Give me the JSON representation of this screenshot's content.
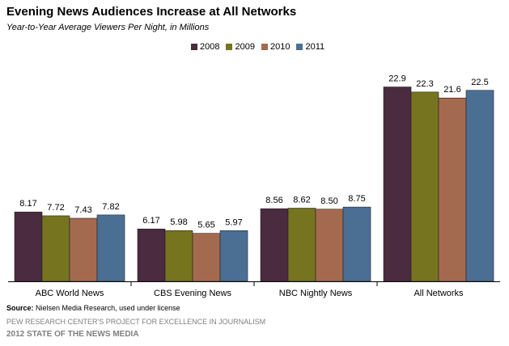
{
  "chart_data": {
    "type": "bar",
    "title": "Evening News Audiences Increase at All Networks",
    "subtitle": "Year-to-Year Average Viewers Per Night, in Millions",
    "categories": [
      "ABC World News",
      "CBS Evening News",
      "NBC Nightly News",
      "All Networks"
    ],
    "series": [
      {
        "name": "2008",
        "color": "#4b2b3f",
        "values": [
          8.17,
          6.17,
          8.56,
          22.9
        ],
        "labels": [
          "8.17",
          "6.17",
          "8.56",
          "22.9"
        ]
      },
      {
        "name": "2009",
        "color": "#76741f",
        "values": [
          7.72,
          5.98,
          8.62,
          22.3
        ],
        "labels": [
          "7.72",
          "5.98",
          "8.62",
          "22.3"
        ]
      },
      {
        "name": "2010",
        "color": "#a46a4f",
        "values": [
          7.43,
          5.65,
          8.5,
          21.6
        ],
        "labels": [
          "7.43",
          "5.65",
          "8.50",
          "21.6"
        ]
      },
      {
        "name": "2011",
        "color": "#4b6f93",
        "values": [
          7.82,
          5.97,
          8.75,
          22.5
        ],
        "labels": [
          "7.82",
          "5.97",
          "8.75",
          "22.5"
        ]
      }
    ],
    "ylim": [
      0,
      24
    ],
    "grid": false,
    "legend_position": "top-center"
  },
  "footer": {
    "source_label": "Source:",
    "source_text": "Nielsen Media Research, used under license",
    "org": "PEW RESEARCH CENTER'S PROJECT FOR EXCELLENCE IN JOURNALISM",
    "report": "2012 STATE OF THE NEWS MEDIA"
  }
}
